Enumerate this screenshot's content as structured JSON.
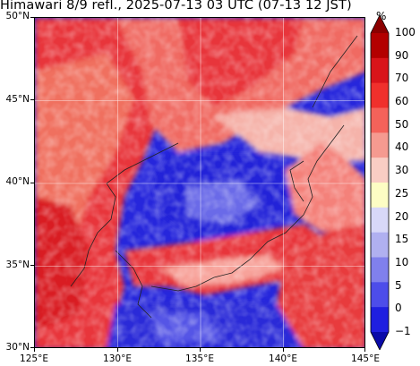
{
  "title": "Himawari 8/9 refl., 2025-07-13 03 UTC (07-13 12 JST)",
  "map": {
    "lat_labels": [
      {
        "text": "50°N",
        "value": 50
      },
      {
        "text": "45°N",
        "value": 45
      },
      {
        "text": "40°N",
        "value": 40
      },
      {
        "text": "35°N",
        "value": 35
      },
      {
        "text": "30°N",
        "value": 30
      }
    ],
    "lon_labels": [
      {
        "text": "125°E",
        "value": 125
      },
      {
        "text": "130°E",
        "value": 130
      },
      {
        "text": "135°E",
        "value": 135
      },
      {
        "text": "140°E",
        "value": 140
      },
      {
        "text": "145°E",
        "value": 145
      }
    ]
  },
  "colorbar": {
    "unit": "%",
    "labels": [
      "100",
      "90",
      "70",
      "60",
      "50",
      "40",
      "30",
      "25",
      "20",
      "15",
      "10",
      "5",
      "0",
      "−1"
    ],
    "colors": [
      "#8b0000",
      "#b30000",
      "#d9141a",
      "#f0302c",
      "#f4625a",
      "#f59a90",
      "#f9cdc4",
      "#fdfdc4",
      "#d8d8f8",
      "#b0b0f0",
      "#8080ec",
      "#4d4dea",
      "#1f1fe0",
      "#0a0aa8"
    ]
  }
}
